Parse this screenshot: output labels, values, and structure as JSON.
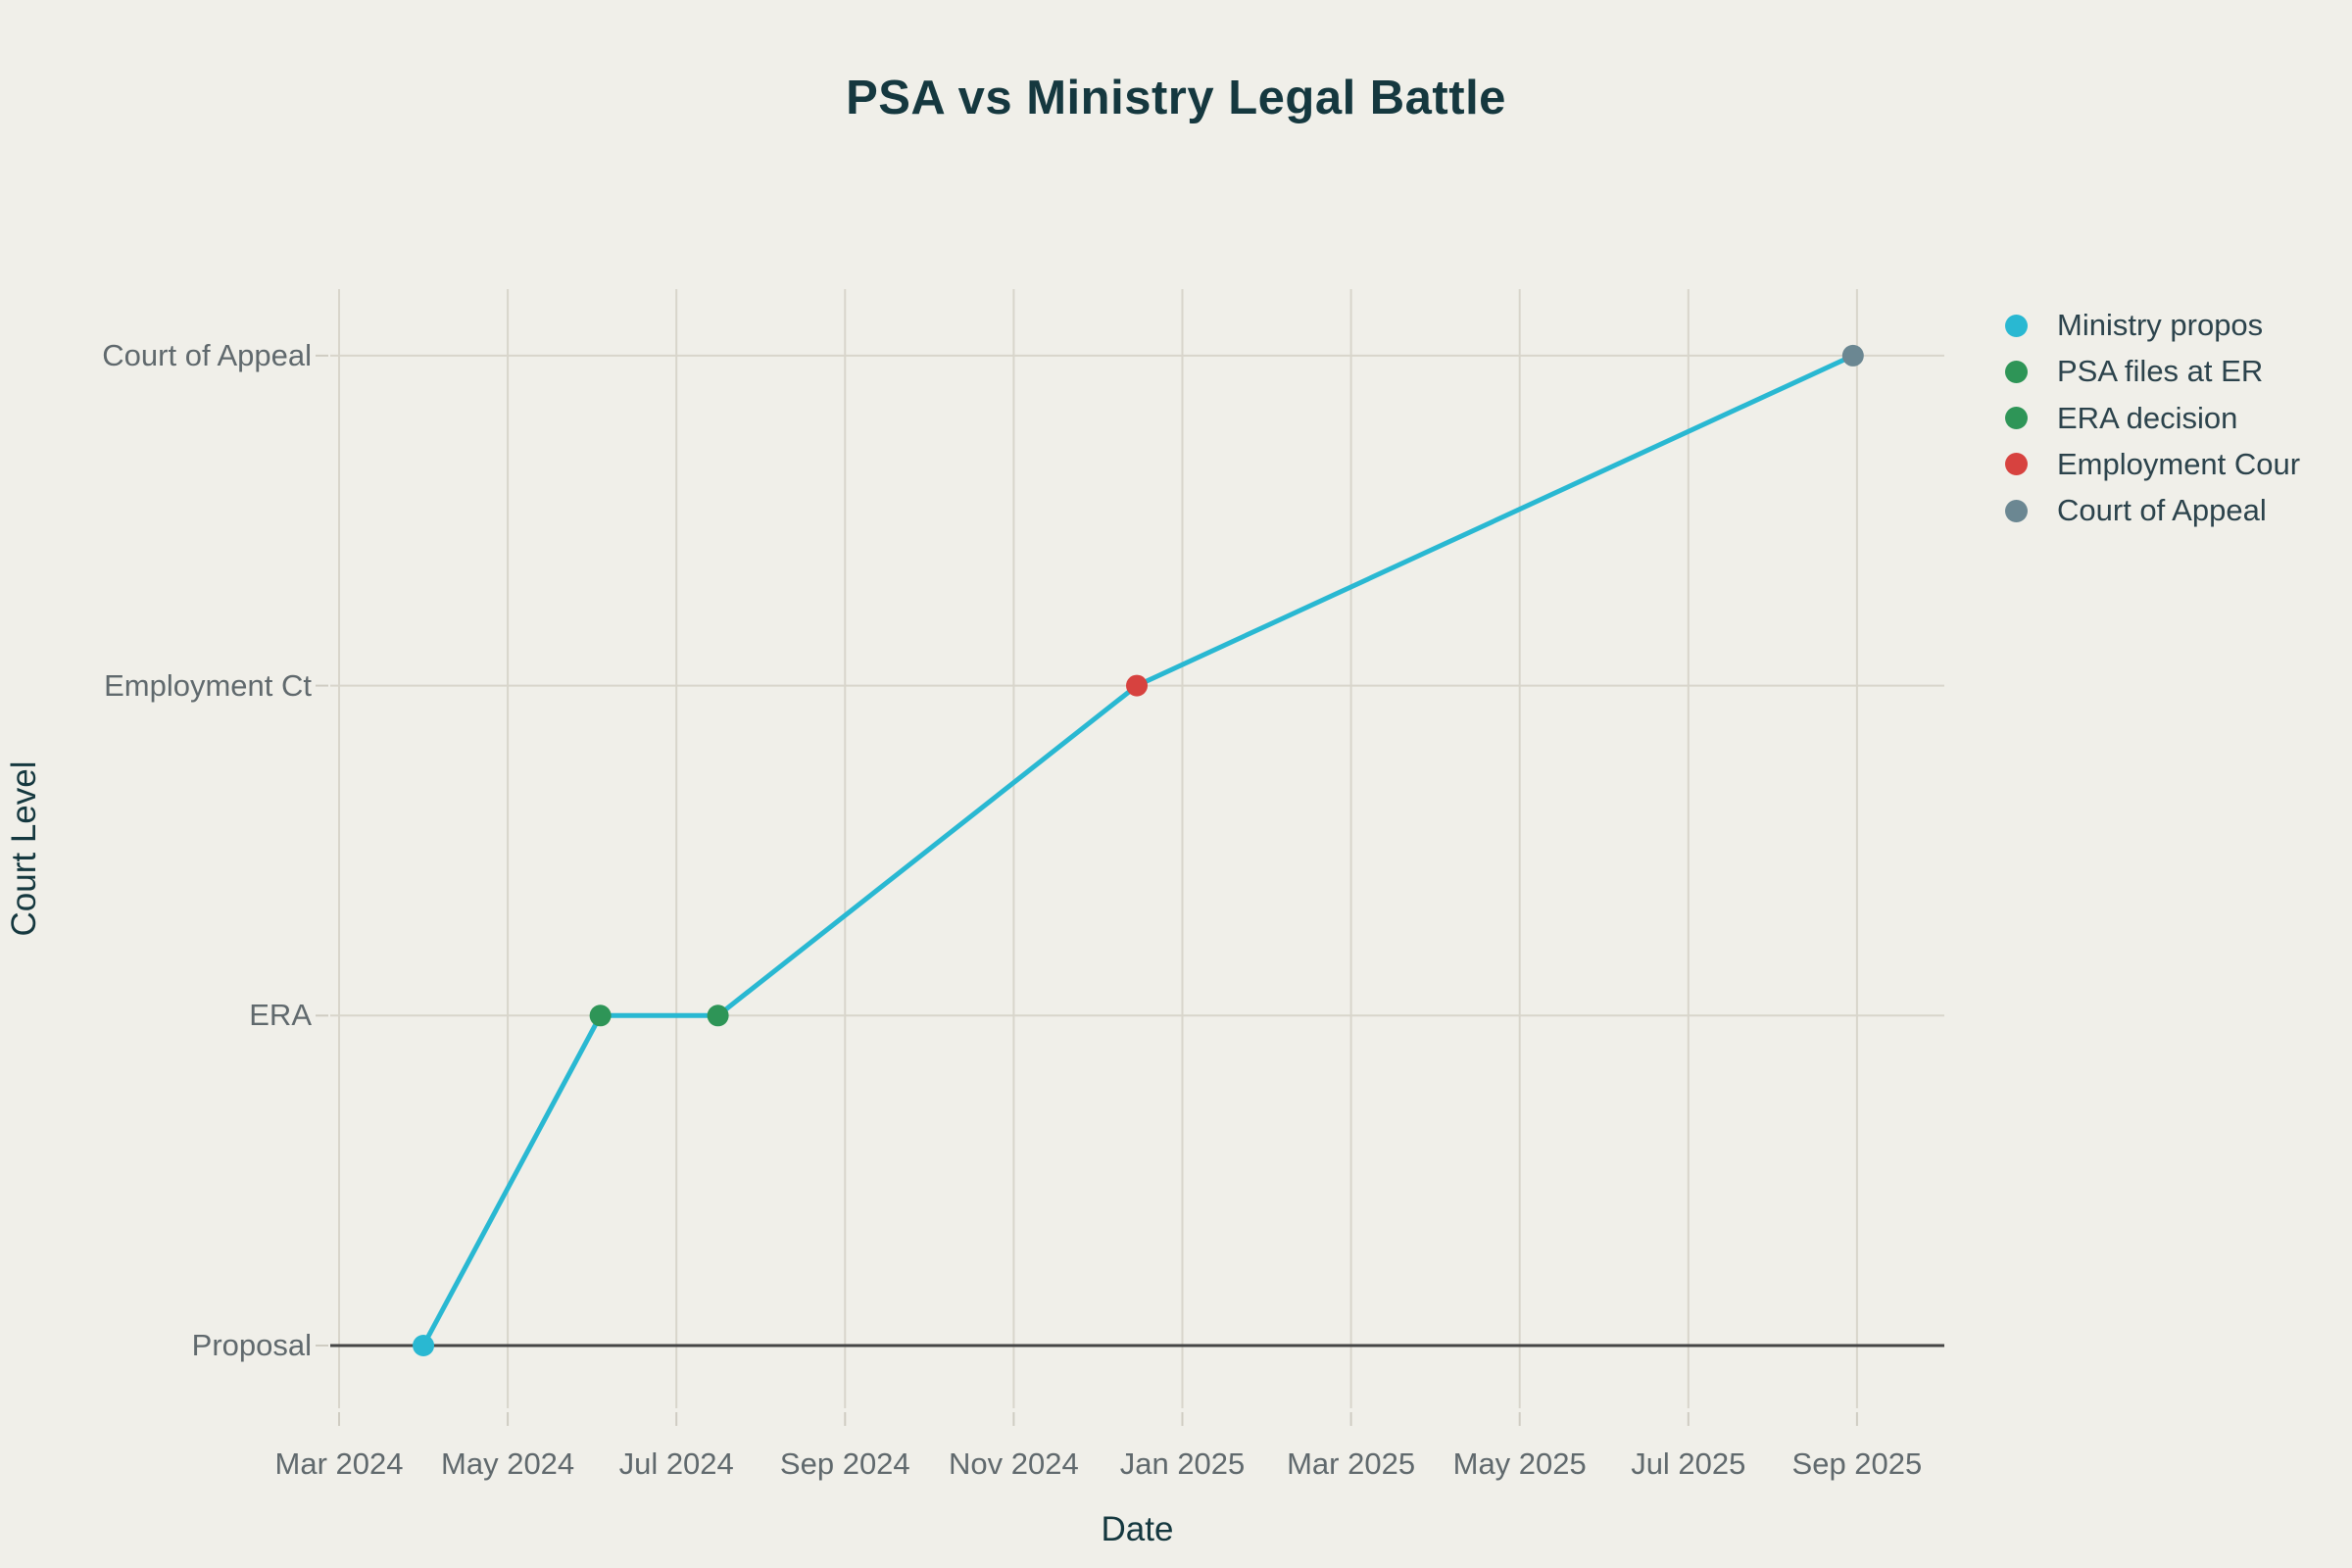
{
  "colors": {
    "background": "#f0efe9",
    "grid": "#d8d5cb",
    "tick_mark": "#cfccc2",
    "axis_line": "#454545",
    "tick_label_text": "#60696d",
    "heading_text": "#15383f",
    "legend_text": "#2c434c"
  },
  "chart_data": {
    "type": "line",
    "title": "PSA vs Ministry Legal Battle",
    "xlabel": "Date",
    "ylabel": "Court Level",
    "grid": true,
    "legend_position": "right",
    "line_color": "#29b8d2",
    "line_width": 5,
    "marker_radius": 11,
    "y_categories": [
      "Proposal",
      "ERA",
      "Employment Ct",
      "Court of Appeal"
    ],
    "x_tick_labels": [
      "Mar 2024",
      "May 2024",
      "Jul 2024",
      "Sep 2024",
      "Nov 2024",
      "Jan 2025",
      "Mar 2025",
      "May 2025",
      "Jul 2025",
      "Sep 2025"
    ],
    "x_range": [
      "2024-02-27",
      "2025-10-02"
    ],
    "points": [
      {
        "name": "Ministry propos",
        "date": "2024-04-01",
        "level": "Proposal",
        "color": "#29b8d2"
      },
      {
        "name": "PSA files at ER",
        "date": "2024-06-04",
        "level": "ERA",
        "color": "#2e9557"
      },
      {
        "name": "ERA decision",
        "date": "2024-07-16",
        "level": "ERA",
        "color": "#2e9557"
      },
      {
        "name": "Employment Cour",
        "date": "2024-12-15",
        "level": "Employment Ct",
        "color": "#d7423f"
      },
      {
        "name": "Court of Appeal",
        "date": "2025-08-30",
        "level": "Court of Appeal",
        "color": "#6b8792"
      }
    ]
  }
}
